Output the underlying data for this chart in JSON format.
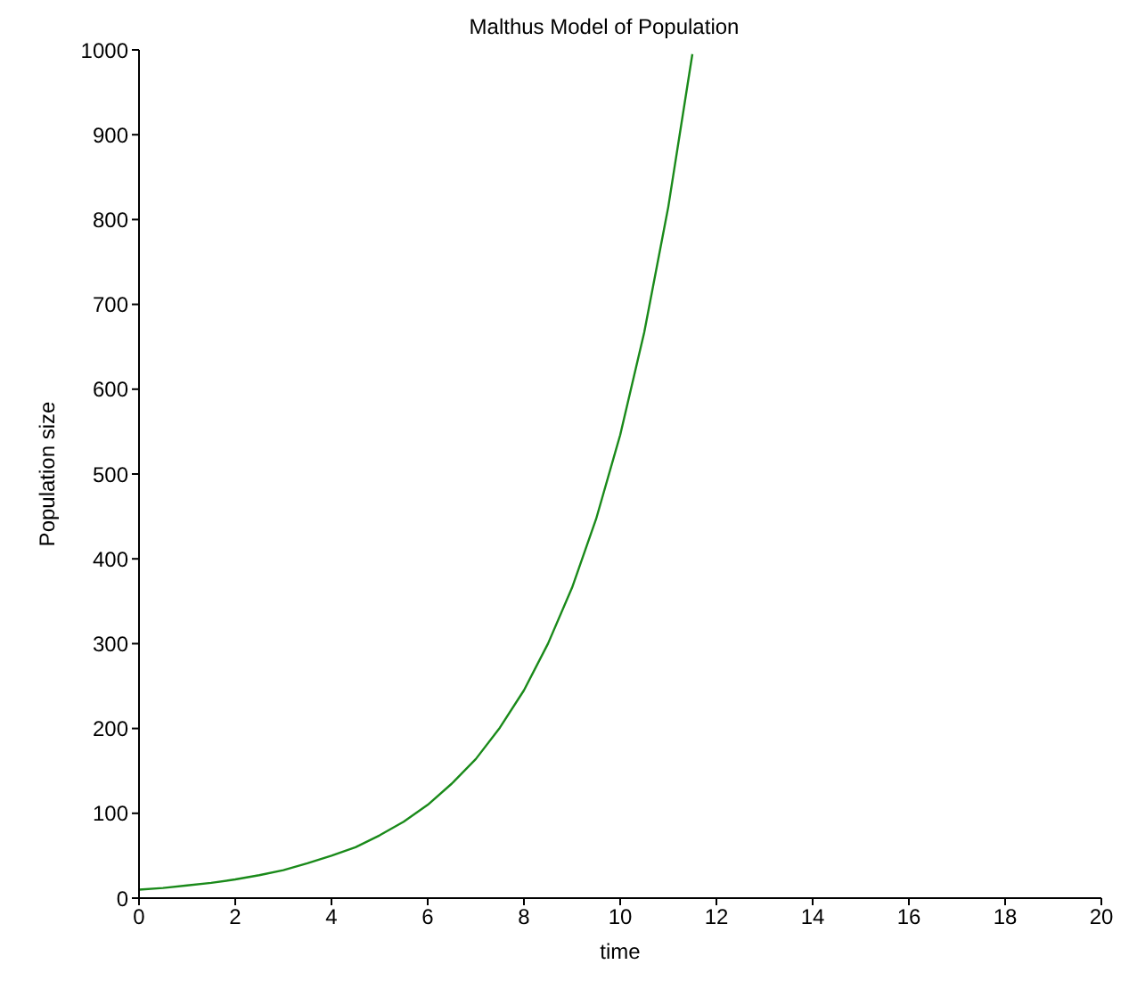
{
  "chart_data": {
    "type": "line",
    "title": "Malthus Model of Population",
    "xlabel": "time",
    "ylabel": "Population size",
    "x": [
      0,
      0.5,
      1,
      1.5,
      2,
      2.5,
      3,
      3.5,
      4,
      4.5,
      5,
      5.5,
      6,
      6.5,
      7,
      7.5,
      8,
      8.5,
      9,
      9.5,
      10,
      10.5,
      11,
      11.5
    ],
    "series": [
      {
        "color": "#1a8a1a",
        "values": [
          10,
          12,
          15,
          18,
          22,
          27,
          33,
          41,
          50,
          60,
          74,
          90,
          110,
          135,
          164,
          201,
          245,
          300,
          366,
          447,
          546,
          667,
          815,
          995
        ]
      }
    ],
    "xlim": [
      0,
      20
    ],
    "xticks": [
      0,
      2,
      4,
      6,
      8,
      10,
      12,
      14,
      16,
      18,
      20
    ],
    "ylim": [
      0,
      1000
    ],
    "yticks": [
      0,
      100,
      200,
      300,
      400,
      500,
      600,
      700,
      800,
      900,
      1000
    ],
    "grid": false,
    "legend": false,
    "marker": "none",
    "line_style": "solid"
  }
}
